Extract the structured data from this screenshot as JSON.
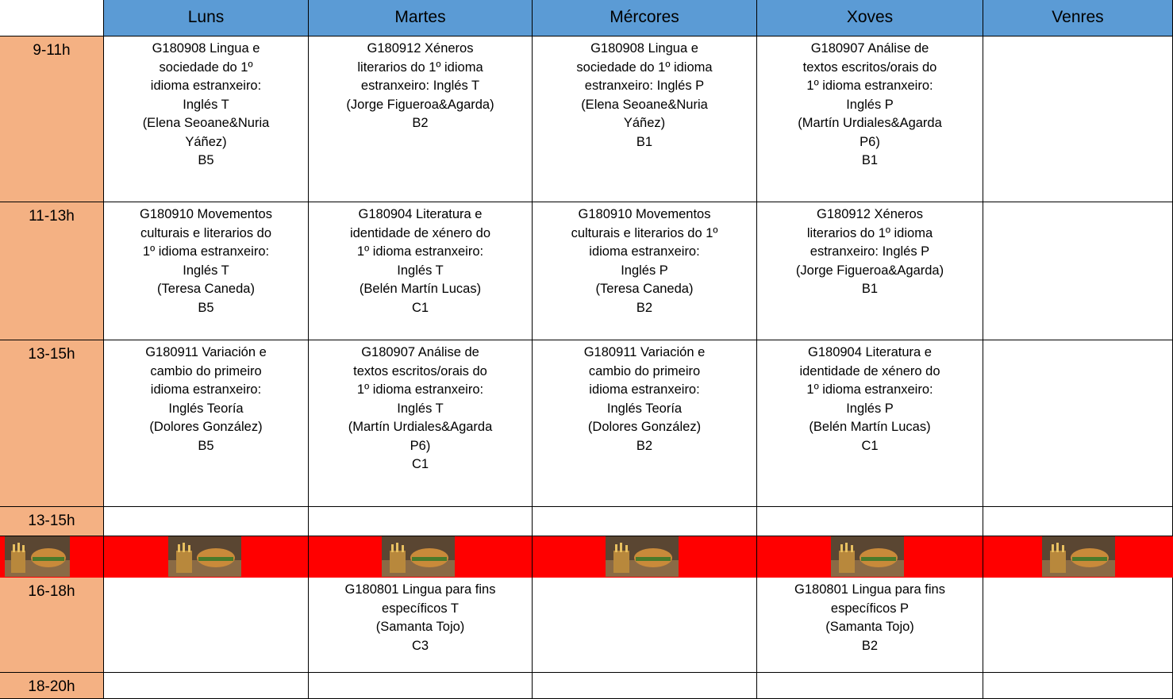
{
  "header": {
    "days": [
      "Luns",
      "Martes",
      "Mércores",
      "Xoves",
      "Venres"
    ]
  },
  "rows": [
    {
      "time": "9-11h",
      "cells": [
        [
          "G180908 Lingua e",
          "sociedade do 1º",
          "idioma estranxeiro:",
          "Inglés T",
          "(Elena Seoane&Nuria",
          "Yáñez)",
          "B5"
        ],
        [
          "G180912 Xéneros",
          "literarios do 1º idioma",
          "estranxeiro: Inglés T",
          "(Jorge Figueroa&Agarda)",
          "B2"
        ],
        [
          "G180908 Lingua e",
          "sociedade do 1º idioma",
          "estranxeiro: Inglés P",
          "(Elena Seoane&Nuria",
          "Yáñez)",
          "B1"
        ],
        [
          "G180907 Análise de",
          "textos escritos/orais do",
          "1º idioma estranxeiro:",
          "Inglés P",
          "(Martín Urdiales&Agarda",
          "P6)",
          "B1"
        ],
        []
      ]
    },
    {
      "time": "11-13h",
      "cells": [
        [
          "G180910 Movementos",
          "culturais e literarios do",
          "1º idioma estranxeiro:",
          "Inglés  T",
          "(Teresa Caneda)",
          "B5"
        ],
        [
          "G180904 Literatura e",
          "identidade de xénero do",
          "1º idioma estranxeiro:",
          "Inglés T",
          "(Belén Martín Lucas)",
          "C1"
        ],
        [
          "G180910 Movementos",
          "culturais e literarios do 1º",
          "idioma estranxeiro:",
          "Inglés  P",
          "(Teresa Caneda)",
          "B2"
        ],
        [
          "G180912 Xéneros",
          "literarios do 1º idioma",
          "estranxeiro: Inglés P",
          "(Jorge Figueroa&Agarda)",
          "B1"
        ],
        []
      ]
    },
    {
      "time": "13-15h",
      "cells": [
        [
          "G180911 Variación e",
          "cambio do primeiro",
          "idioma estranxeiro:",
          "Inglés Teoría",
          "(Dolores González)",
          "B5"
        ],
        [
          "G180907 Análise de",
          "textos escritos/orais do",
          "1º idioma estranxeiro:",
          "Inglés T",
          "(Martín Urdiales&Agarda",
          "P6)",
          "C1"
        ],
        [
          "G180911 Variación e",
          "cambio do primeiro",
          "idioma estranxeiro:",
          "Inglés Teoría",
          "(Dolores González)",
          "B2"
        ],
        [
          "G180904 Literatura e",
          "identidade de xénero do",
          "1º idioma estranxeiro:",
          "Inglés P",
          "(Belén Martín Lucas)",
          "C1"
        ],
        []
      ]
    },
    {
      "time": "13-15h",
      "cells": [
        [],
        [],
        [],
        [],
        []
      ]
    },
    {
      "time": "16-18h",
      "cells": [
        [],
        [
          "G180801 Lingua para fins",
          "específicos T",
          "(Samanta Tojo)",
          "C3"
        ],
        [],
        [
          "G180801 Lingua para fins",
          "específicos P",
          "(Samanta Tojo)",
          "B2"
        ],
        []
      ]
    },
    {
      "time": "18-20h",
      "cells": [
        [],
        [],
        [],
        [],
        []
      ]
    }
  ]
}
